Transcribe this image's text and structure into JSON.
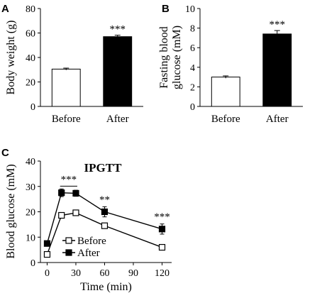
{
  "chart_data": [
    {
      "panel": "A",
      "type": "bar",
      "categories": [
        "Before",
        "After"
      ],
      "values": [
        30.5,
        57
      ],
      "errors": [
        0.8,
        1.2
      ],
      "bar_colors": [
        "#ffffff",
        "#000000"
      ],
      "ylabel": "Body weight (g)",
      "ylim": [
        0,
        80
      ],
      "yticks": [
        "0",
        "20",
        "40",
        "60",
        "80"
      ],
      "significance": [
        "",
        "***"
      ]
    },
    {
      "panel": "B",
      "type": "bar",
      "categories": [
        "Before",
        "After"
      ],
      "values": [
        3.0,
        7.4
      ],
      "errors": [
        0.12,
        0.35
      ],
      "bar_colors": [
        "#ffffff",
        "#000000"
      ],
      "ylabel_lines": [
        "Fasting blood",
        "glucose (mM)"
      ],
      "ylim": [
        0,
        10
      ],
      "yticks": [
        "0",
        "2",
        "4",
        "6",
        "8",
        "10"
      ],
      "significance": [
        "",
        "***"
      ]
    },
    {
      "panel": "C",
      "type": "line",
      "title": "IPGTT",
      "xlabel": "Time (min)",
      "ylabel": "Blood glucose (mM)",
      "x": [
        0,
        15,
        30,
        60,
        120
      ],
      "xlim": [
        -7,
        130
      ],
      "ylim": [
        0,
        40
      ],
      "xticks": [
        "0",
        "30",
        "60",
        "90",
        "120"
      ],
      "yticks": [
        "0",
        "10",
        "20",
        "30",
        "40"
      ],
      "series": [
        {
          "name": "Before",
          "values": [
            3.2,
            18.6,
            19.6,
            14.5,
            6.0
          ],
          "errors": [
            0.5,
            0.8,
            0.7,
            0.7,
            0.5
          ],
          "marker": "open-square"
        },
        {
          "name": "After",
          "values": [
            7.5,
            27.5,
            27.3,
            20.0,
            13.2
          ],
          "errors": [
            0.6,
            1.5,
            1.2,
            2.0,
            2.0
          ],
          "marker": "filled-square"
        }
      ],
      "annotations": [
        {
          "text": "***",
          "x": 22.5,
          "y": 31.5,
          "bracket": [
            15,
            30
          ]
        },
        {
          "text": "**",
          "x": 60,
          "y": 23.5
        },
        {
          "text": "***",
          "x": 120,
          "y": 16.8
        }
      ],
      "legend": "lower-left"
    }
  ],
  "panel_labels": [
    "A",
    "B",
    "C"
  ]
}
